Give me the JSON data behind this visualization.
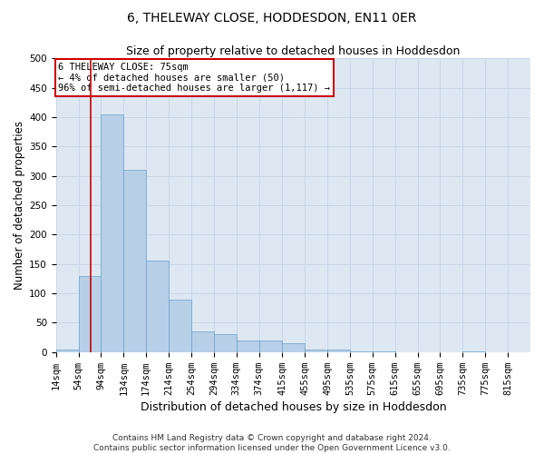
{
  "title": "6, THELEWAY CLOSE, HODDESDON, EN11 0ER",
  "subtitle": "Size of property relative to detached houses in Hoddesdon",
  "xlabel": "Distribution of detached houses by size in Hoddesdon",
  "ylabel": "Number of detached properties",
  "footer_line1": "Contains HM Land Registry data © Crown copyright and database right 2024.",
  "footer_line2": "Contains public sector information licensed under the Open Government Licence v3.0.",
  "bar_color": "#b8cfe8",
  "bar_edge_color": "#6a9fc8",
  "bins_left": [
    14,
    54,
    94,
    134,
    174,
    214,
    254,
    294,
    334,
    374,
    415,
    455,
    495,
    535,
    575,
    615,
    655,
    695,
    735,
    775,
    815
  ],
  "bin_width": 40,
  "counts": [
    5,
    130,
    405,
    310,
    155,
    90,
    35,
    30,
    20,
    20,
    15,
    5,
    5,
    1,
    1,
    0,
    0,
    0,
    1,
    0,
    0
  ],
  "vline_x": 75,
  "vline_color": "#cc0000",
  "annotation_line1": "6 THELEWAY CLOSE: 75sqm",
  "annotation_line2": "← 4% of detached houses are smaller (50)",
  "annotation_line3": "96% of semi-detached houses are larger (1,117) →",
  "annotation_box_color": "#cc0000",
  "ylim": [
    0,
    500
  ],
  "yticks": [
    0,
    50,
    100,
    150,
    200,
    250,
    300,
    350,
    400,
    450,
    500
  ],
  "grid_color": "#c8d8e8",
  "bg_color": "#dde8f2",
  "title_fontsize": 10,
  "subtitle_fontsize": 9,
  "axis_label_fontsize": 8.5,
  "tick_fontsize": 7.5,
  "footer_fontsize": 6.5,
  "annotation_fontsize": 7.5
}
